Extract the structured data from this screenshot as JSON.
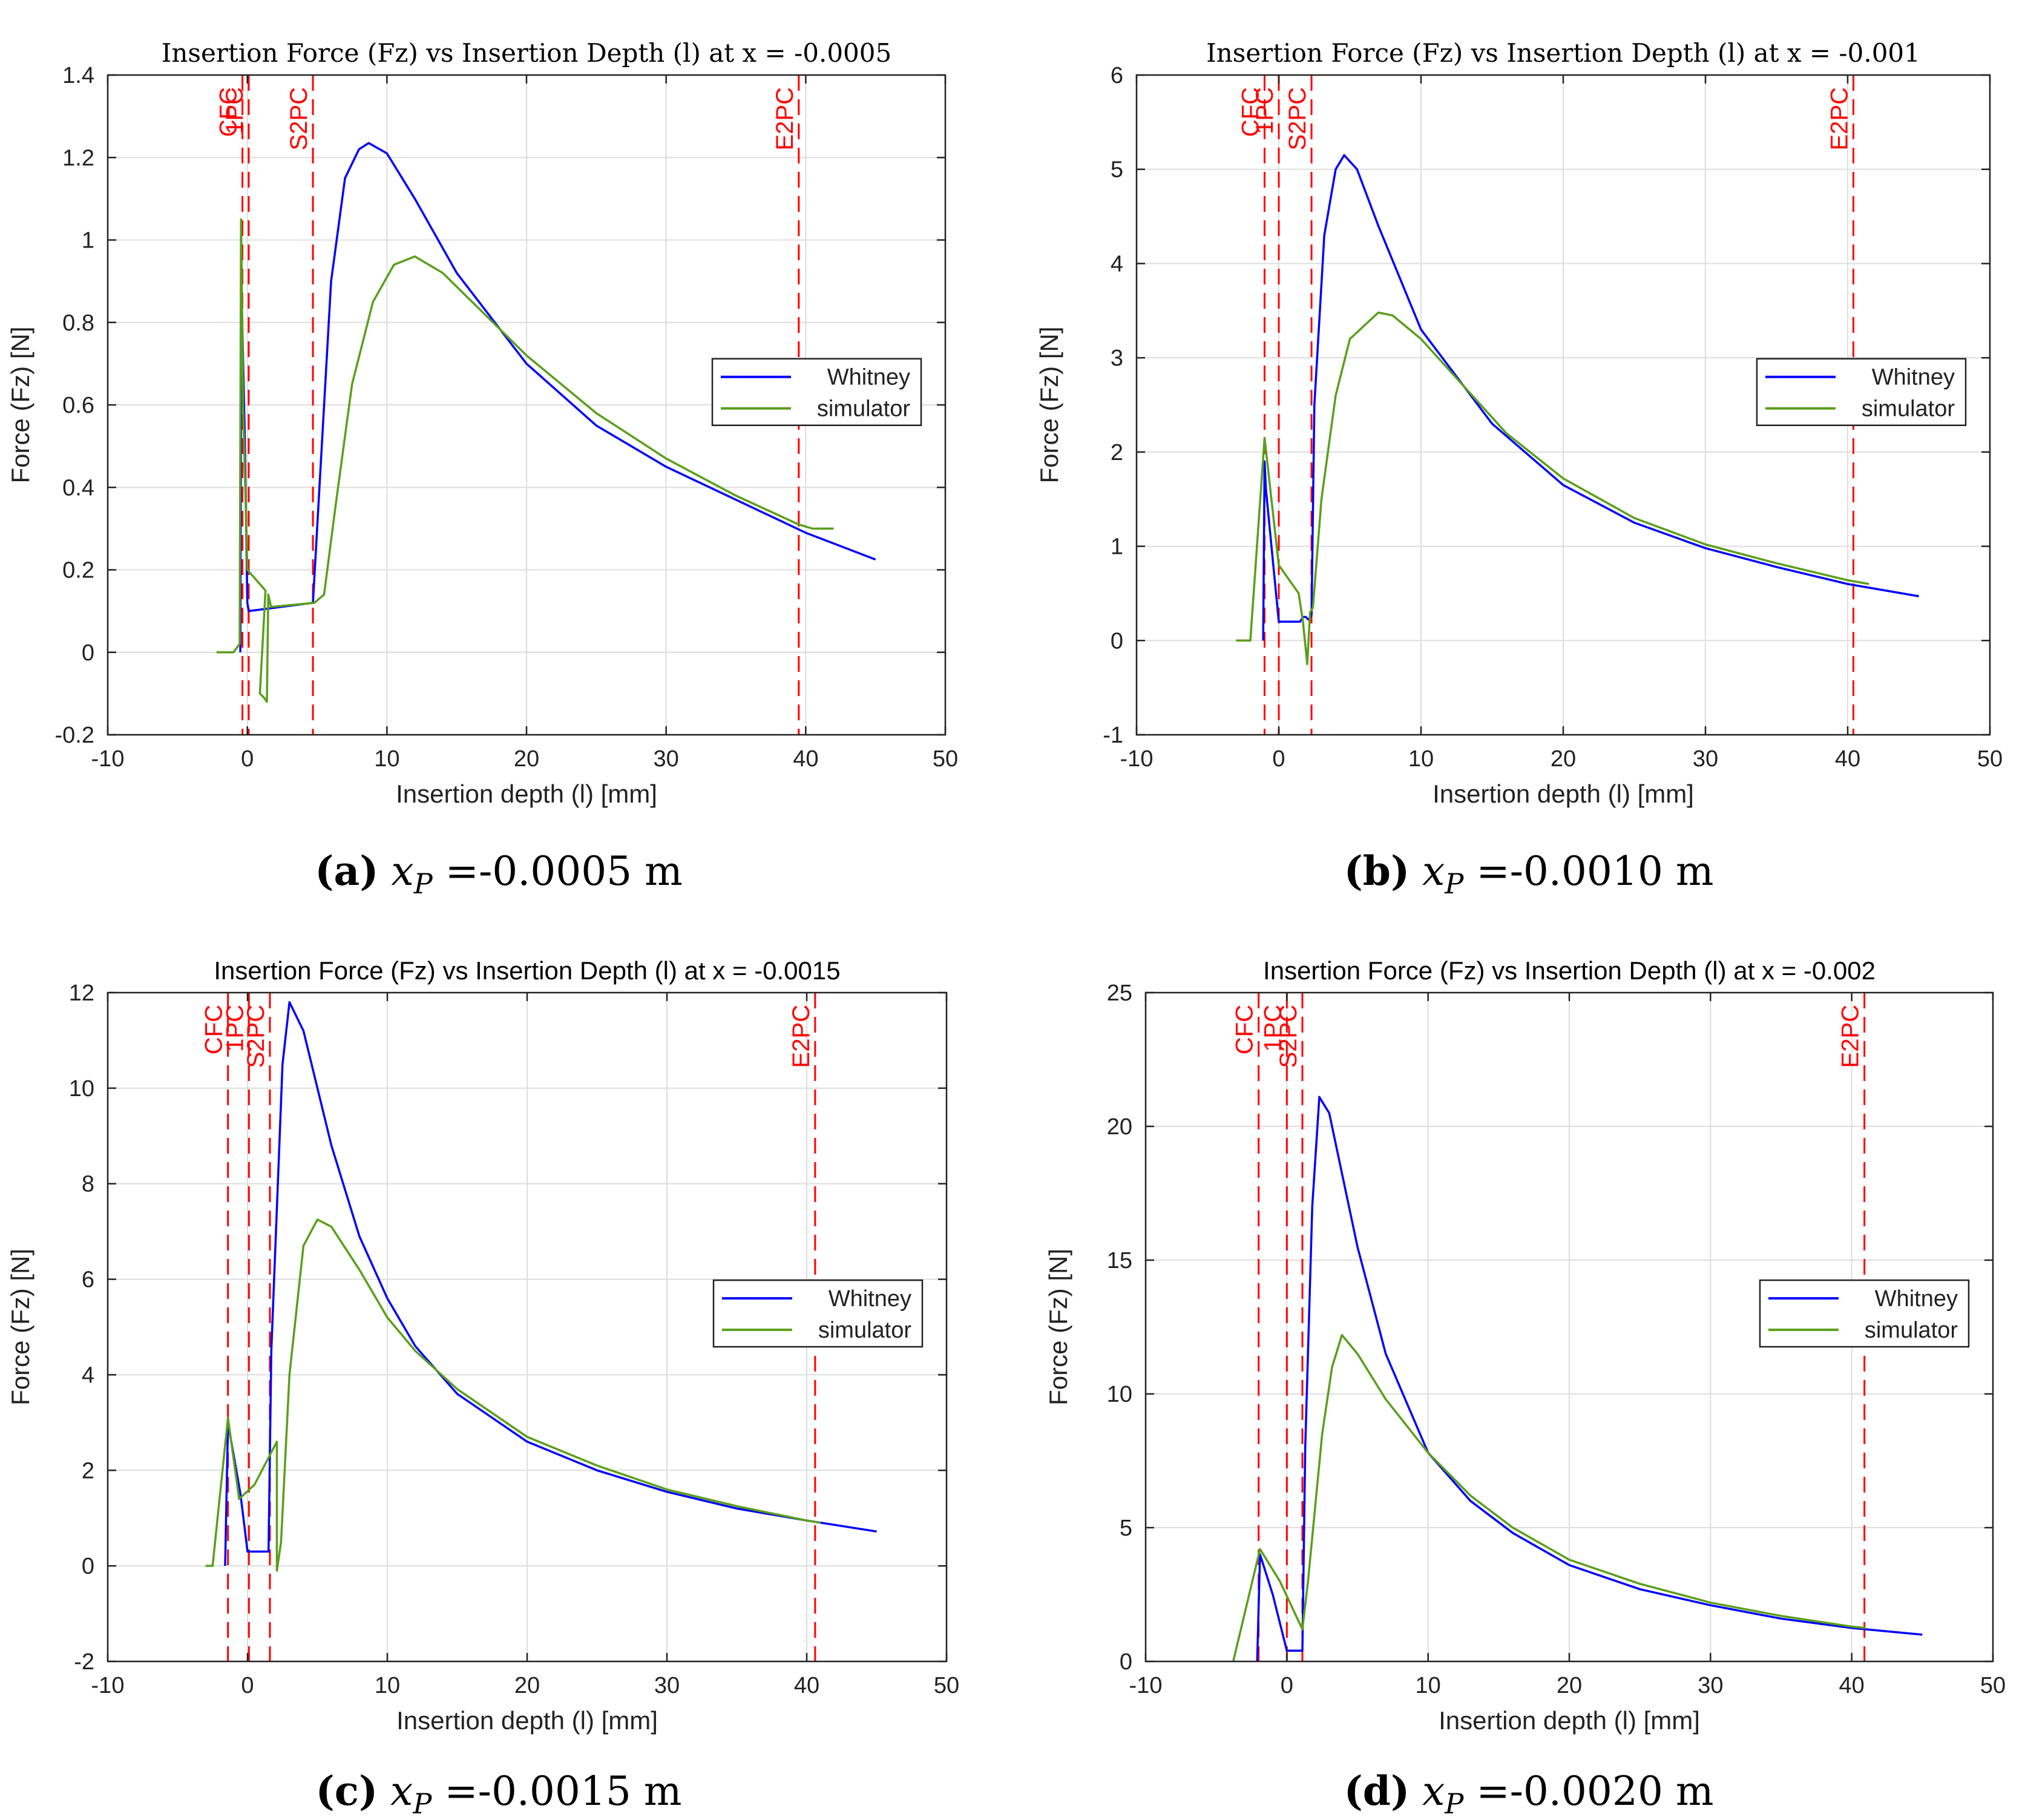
{
  "chart_data": [
    {
      "type": "line",
      "title": "Insertion Force (Fz) vs Insertion Depth (l) at x = -0.0005",
      "xlabel": "Insertion depth (l) [mm]",
      "ylabel": "Force (Fz) [N]",
      "xlim": [
        -10,
        50
      ],
      "ylim": [
        -0.2,
        1.4
      ],
      "xticks": [
        -10,
        0,
        10,
        20,
        30,
        40,
        50
      ],
      "yticks": [
        -0.2,
        0,
        0.2,
        0.4,
        0.6,
        0.8,
        1,
        1.2,
        1.4
      ],
      "ytick_labels": [
        "-0.2",
        "0",
        "0.2",
        "0.4",
        "0.6",
        "0.8",
        "1",
        "1.2",
        "1.4"
      ],
      "grid": true,
      "legend_position": "right",
      "series": [
        {
          "name": "Whitney",
          "color": "#0000ff",
          "points": [
            [
              -0.5,
              0
            ],
            [
              -0.45,
              0.62
            ],
            [
              -0.4,
              0.85
            ],
            [
              -0.2,
              0.55
            ],
            [
              0,
              0.12
            ],
            [
              0.1,
              0.1
            ],
            [
              4.7,
              0.12
            ],
            [
              5.2,
              0.42
            ],
            [
              6,
              0.9
            ],
            [
              7,
              1.15
            ],
            [
              8,
              1.22
            ],
            [
              8.7,
              1.235
            ],
            [
              10,
              1.21
            ],
            [
              12,
              1.1
            ],
            [
              15,
              0.92
            ],
            [
              20,
              0.7
            ],
            [
              25,
              0.55
            ],
            [
              30,
              0.45
            ],
            [
              35,
              0.37
            ],
            [
              40,
              0.29
            ],
            [
              45,
              0.225
            ]
          ]
        },
        {
          "name": "simulator",
          "color": "#5a9e1b",
          "points": [
            [
              -2.2,
              0
            ],
            [
              -1.0,
              0
            ],
            [
              -0.55,
              0.02
            ],
            [
              -0.45,
              1.05
            ],
            [
              -0.3,
              0.6
            ],
            [
              0,
              0.2
            ],
            [
              1.3,
              0.15
            ],
            [
              0.9,
              -0.1
            ],
            [
              1.2,
              -0.11
            ],
            [
              1.4,
              -0.12
            ],
            [
              1.5,
              0.14
            ],
            [
              1.7,
              0.11
            ],
            [
              4.8,
              0.12
            ],
            [
              5.5,
              0.14
            ],
            [
              6.3,
              0.35
            ],
            [
              7.5,
              0.65
            ],
            [
              9,
              0.85
            ],
            [
              10.5,
              0.94
            ],
            [
              12,
              0.96
            ],
            [
              14,
              0.92
            ],
            [
              17,
              0.82
            ],
            [
              20,
              0.72
            ],
            [
              25,
              0.58
            ],
            [
              30,
              0.47
            ],
            [
              35,
              0.38
            ],
            [
              39.5,
              0.31
            ],
            [
              40.5,
              0.3
            ],
            [
              42,
              0.3
            ]
          ]
        }
      ],
      "markers": [
        {
          "label": "CFC",
          "x": -0.35
        },
        {
          "label": "1PC",
          "x": 0.1
        },
        {
          "label": "S2PC",
          "x": 4.7
        },
        {
          "label": "E2PC",
          "x": 39.5
        }
      ],
      "caption": {
        "letter": "(a)",
        "variable": "x",
        "subscript": "P",
        "text": "=-0.0005 m"
      }
    },
    {
      "type": "line",
      "title": "Insertion Force (Fz) vs Insertion Depth (l) at x = -0.001",
      "xlabel": "Insertion depth (l) [mm]",
      "ylabel": "Force (Fz) [N]",
      "xlim": [
        -10,
        50
      ],
      "ylim": [
        -1,
        6
      ],
      "xticks": [
        -10,
        0,
        10,
        20,
        30,
        40,
        50
      ],
      "yticks": [
        -1,
        0,
        1,
        2,
        3,
        4,
        5,
        6
      ],
      "ytick_labels": [
        "-1",
        "0",
        "1",
        "2",
        "3",
        "4",
        "5",
        "6"
      ],
      "grid": true,
      "legend_position": "right",
      "series": [
        {
          "name": "Whitney",
          "color": "#0000ff",
          "points": [
            [
              -1.1,
              0
            ],
            [
              -1.0,
              1.9
            ],
            [
              -0.9,
              1.6
            ],
            [
              0,
              0.2
            ],
            [
              1.5,
              0.2
            ],
            [
              1.7,
              0.25
            ],
            [
              1.9,
              0.25
            ],
            [
              2.1,
              0.22
            ],
            [
              2.3,
              0.27
            ],
            [
              2.5,
              2.5
            ],
            [
              3.2,
              4.3
            ],
            [
              4,
              5.0
            ],
            [
              4.6,
              5.15
            ],
            [
              5.5,
              5.0
            ],
            [
              7,
              4.4
            ],
            [
              10,
              3.3
            ],
            [
              15,
              2.3
            ],
            [
              20,
              1.65
            ],
            [
              25,
              1.25
            ],
            [
              30,
              0.98
            ],
            [
              35,
              0.78
            ],
            [
              40,
              0.6
            ],
            [
              45,
              0.47
            ]
          ]
        },
        {
          "name": "simulator",
          "color": "#5a9e1b",
          "points": [
            [
              -3,
              0
            ],
            [
              -2,
              0
            ],
            [
              -1.0,
              2.15
            ],
            [
              0,
              0.8
            ],
            [
              1.4,
              0.5
            ],
            [
              1.6,
              0.3
            ],
            [
              1.7,
              0.2
            ],
            [
              1.9,
              -0.1
            ],
            [
              2.0,
              -0.25
            ],
            [
              2.2,
              0.3
            ],
            [
              2.4,
              0.35
            ],
            [
              3.0,
              1.5
            ],
            [
              4,
              2.6
            ],
            [
              5,
              3.2
            ],
            [
              7,
              3.48
            ],
            [
              8,
              3.45
            ],
            [
              10,
              3.2
            ],
            [
              13,
              2.7
            ],
            [
              16,
              2.2
            ],
            [
              20,
              1.72
            ],
            [
              25,
              1.3
            ],
            [
              30,
              1.02
            ],
            [
              35,
              0.82
            ],
            [
              40,
              0.64
            ],
            [
              41.5,
              0.6
            ]
          ]
        }
      ],
      "markers": [
        {
          "label": "CFC",
          "x": -1.0
        },
        {
          "label": "1PC",
          "x": 0.0
        },
        {
          "label": "S2PC",
          "x": 2.3
        },
        {
          "label": "E2PC",
          "x": 40.4
        }
      ],
      "caption": {
        "letter": "(b)",
        "variable": "x",
        "subscript": "P",
        "text": "=-0.0010 m"
      }
    },
    {
      "type": "line",
      "title": "Insertion Force (Fz) vs Insertion Depth (l) at x = -0.0015",
      "xlabel": "Insertion depth (l) [mm]",
      "ylabel": "Force (Fz) [N]",
      "xlim": [
        -10,
        50
      ],
      "ylim": [
        -2,
        12
      ],
      "xticks": [
        -10,
        0,
        10,
        20,
        30,
        40,
        50
      ],
      "yticks": [
        -2,
        0,
        2,
        4,
        6,
        8,
        10,
        12
      ],
      "ytick_labels": [
        "-2",
        "0",
        "2",
        "4",
        "6",
        "8",
        "10",
        "12"
      ],
      "grid": true,
      "legend_position": "right",
      "series": [
        {
          "name": "Whitney",
          "color": "#0000ff",
          "points": [
            [
              -1.6,
              0
            ],
            [
              -1.4,
              3.0
            ],
            [
              -0.5,
              1.5
            ],
            [
              0,
              0.3
            ],
            [
              1.5,
              0.3
            ],
            [
              1.7,
              4.5
            ],
            [
              2.5,
              10.5
            ],
            [
              3,
              11.8
            ],
            [
              4,
              11.2
            ],
            [
              6,
              8.8
            ],
            [
              8,
              6.9
            ],
            [
              10,
              5.6
            ],
            [
              12,
              4.6
            ],
            [
              15,
              3.6
            ],
            [
              20,
              2.6
            ],
            [
              25,
              2.0
            ],
            [
              30,
              1.55
            ],
            [
              35,
              1.2
            ],
            [
              40,
              0.95
            ],
            [
              45,
              0.72
            ]
          ]
        },
        {
          "name": "simulator",
          "color": "#5a9e1b",
          "points": [
            [
              -3,
              0
            ],
            [
              -2.5,
              0
            ],
            [
              -1.4,
              3.1
            ],
            [
              -0.6,
              1.4
            ],
            [
              0.5,
              1.7
            ],
            [
              2.1,
              2.6
            ],
            [
              2.1,
              -0.1
            ],
            [
              2.4,
              0.5
            ],
            [
              3,
              4.0
            ],
            [
              4,
              6.7
            ],
            [
              5,
              7.25
            ],
            [
              6,
              7.1
            ],
            [
              8,
              6.2
            ],
            [
              10,
              5.2
            ],
            [
              12,
              4.5
            ],
            [
              15,
              3.7
            ],
            [
              20,
              2.7
            ],
            [
              25,
              2.1
            ],
            [
              30,
              1.6
            ],
            [
              35,
              1.25
            ],
            [
              40,
              0.95
            ],
            [
              41,
              0.9
            ]
          ]
        }
      ],
      "markers": [
        {
          "label": "CFC",
          "x": -1.4
        },
        {
          "label": "1PC",
          "x": 0.1
        },
        {
          "label": "S2PC",
          "x": 1.6
        },
        {
          "label": "E2PC",
          "x": 40.6
        }
      ],
      "caption": {
        "letter": "(c)",
        "variable": "x",
        "subscript": "P",
        "text": "=-0.0015 m"
      }
    },
    {
      "type": "line",
      "title": "Insertion Force (Fz) vs Insertion Depth (l) at x = -0.002",
      "xlabel": "Insertion depth (l) [mm]",
      "ylabel": "Force (Fz) [N]",
      "xlim": [
        -10,
        50
      ],
      "ylim": [
        0,
        25
      ],
      "xticks": [
        -10,
        0,
        10,
        20,
        30,
        40,
        50
      ],
      "yticks": [
        0,
        5,
        10,
        15,
        20,
        25
      ],
      "ytick_labels": [
        "0",
        "5",
        "10",
        "15",
        "20",
        "25"
      ],
      "grid": true,
      "legend_position": "right",
      "series": [
        {
          "name": "Whitney",
          "color": "#0000ff",
          "points": [
            [
              -2.1,
              0
            ],
            [
              -1.9,
              4.0
            ],
            [
              -1.0,
              2.5
            ],
            [
              0,
              0.4
            ],
            [
              1.1,
              0.4
            ],
            [
              1.3,
              8
            ],
            [
              1.8,
              17
            ],
            [
              2.3,
              21.1
            ],
            [
              3,
              20.5
            ],
            [
              5,
              15.5
            ],
            [
              7,
              11.5
            ],
            [
              10,
              7.8
            ],
            [
              13,
              6.0
            ],
            [
              16,
              4.8
            ],
            [
              20,
              3.6
            ],
            [
              25,
              2.7
            ],
            [
              30,
              2.1
            ],
            [
              35,
              1.6
            ],
            [
              40,
              1.25
            ],
            [
              45,
              1.0
            ]
          ]
        },
        {
          "name": "simulator",
          "color": "#5a9e1b",
          "points": [
            [
              -3.8,
              0
            ],
            [
              -1.9,
              4.2
            ],
            [
              -0.5,
              3.0
            ],
            [
              1.1,
              1.2
            ],
            [
              1.5,
              3.0
            ],
            [
              2.5,
              8.5
            ],
            [
              3.2,
              11
            ],
            [
              3.9,
              12.2
            ],
            [
              5,
              11.5
            ],
            [
              7,
              9.8
            ],
            [
              10,
              7.8
            ],
            [
              13,
              6.2
            ],
            [
              16,
              5.0
            ],
            [
              20,
              3.8
            ],
            [
              25,
              2.9
            ],
            [
              30,
              2.2
            ],
            [
              35,
              1.7
            ],
            [
              40,
              1.3
            ],
            [
              41,
              1.25
            ]
          ]
        }
      ],
      "markers": [
        {
          "label": "CFC",
          "x": -2.0
        },
        {
          "label": "1PC",
          "x": 0.0
        },
        {
          "label": "S2PC",
          "x": 1.1
        },
        {
          "label": "E2PC",
          "x": 40.9
        }
      ],
      "caption": {
        "letter": "(d)",
        "variable": "x",
        "subscript": "P",
        "text": "=-0.0020 m"
      }
    }
  ]
}
